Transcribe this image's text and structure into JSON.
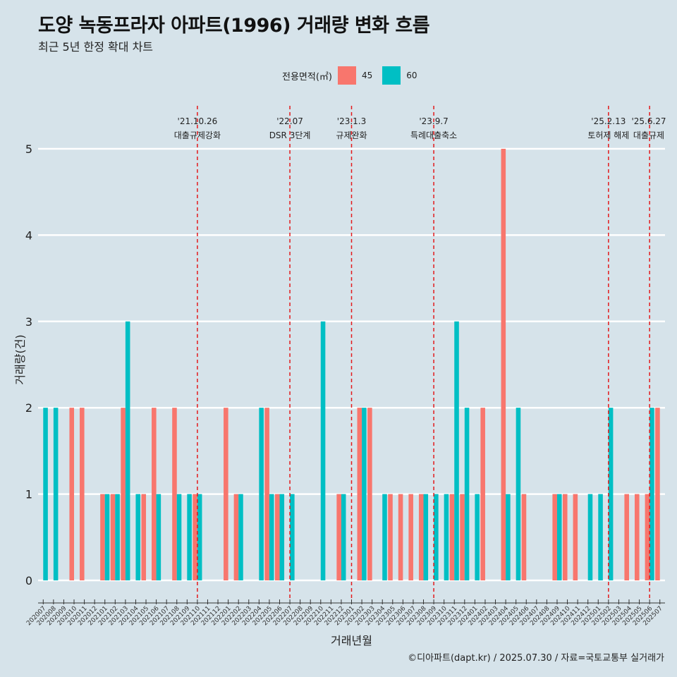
{
  "title": "도양 녹동프라자 아파트(1996) 거래량 변화 흐름",
  "subtitle": "최근 5년 한정 확대 차트",
  "legend": {
    "title": "전용면적(㎡)",
    "items": [
      {
        "label": "45",
        "color": "#F8766D"
      },
      {
        "label": "60",
        "color": "#00BFC4"
      }
    ]
  },
  "caption": "©디아파트(dapt.kr) / 2025.07.30 / 자료=국토교통부 실거래가",
  "chart_data": {
    "type": "bar",
    "xlabel": "거래년월",
    "ylabel": "거래량(건)",
    "ylim": [
      0,
      5
    ],
    "yticks": [
      0,
      1,
      2,
      3,
      4,
      5
    ],
    "categories": [
      "202007",
      "202008",
      "202009",
      "202010",
      "202011",
      "202012",
      "202101",
      "202102",
      "202103",
      "202104",
      "202105",
      "202106",
      "202107",
      "202108",
      "202109",
      "202110",
      "202111",
      "202112",
      "202201",
      "202202",
      "202203",
      "202204",
      "202205",
      "202206",
      "202207",
      "202208",
      "202209",
      "202210",
      "202211",
      "202212",
      "202301",
      "202302",
      "202303",
      "202304",
      "202305",
      "202306",
      "202307",
      "202308",
      "202309",
      "202310",
      "202311",
      "202312",
      "202401",
      "202402",
      "202403",
      "202404",
      "202405",
      "202406",
      "202407",
      "202408",
      "202409",
      "202410",
      "202411",
      "202412",
      "202501",
      "202502",
      "202503",
      "202504",
      "202505",
      "202506",
      "202507"
    ],
    "series": [
      {
        "name": "45",
        "color": "#F8766D",
        "values": [
          0,
          0,
          0,
          2,
          2,
          0,
          1,
          1,
          2,
          0,
          1,
          2,
          0,
          2,
          0,
          1,
          0,
          0,
          2,
          1,
          0,
          0,
          2,
          1,
          0,
          0,
          0,
          0,
          0,
          1,
          0,
          2,
          2,
          0,
          1,
          1,
          1,
          1,
          0,
          0,
          1,
          1,
          0,
          2,
          0,
          5,
          0,
          1,
          0,
          0,
          1,
          1,
          1,
          0,
          0,
          0,
          0,
          1,
          1,
          1,
          2
        ]
      },
      {
        "name": "60",
        "color": "#00BFC4",
        "values": [
          2,
          2,
          0,
          0,
          0,
          0,
          1,
          1,
          3,
          1,
          0,
          1,
          0,
          1,
          1,
          1,
          0,
          0,
          0,
          1,
          0,
          2,
          1,
          1,
          1,
          0,
          0,
          3,
          0,
          1,
          0,
          2,
          0,
          1,
          0,
          0,
          0,
          1,
          1,
          1,
          3,
          2,
          1,
          0,
          0,
          1,
          2,
          0,
          0,
          0,
          1,
          0,
          0,
          1,
          1,
          2,
          0,
          0,
          0,
          2,
          0
        ]
      }
    ],
    "events": [
      {
        "date": "'21.10.26",
        "label": "대출규제강화",
        "at": "202110"
      },
      {
        "date": "'22.07",
        "label": "DSR 3단계",
        "at": "202207"
      },
      {
        "date": "'23.1.3",
        "label": "규제완화",
        "at": "202301"
      },
      {
        "date": "'23.9.7",
        "label": "특례대출축소",
        "at": "202309"
      },
      {
        "date": "'25.2.13",
        "label": "토허제 해제",
        "at": "202502"
      },
      {
        "date": "'25.6.27",
        "label": "대출규제",
        "at": "202506"
      }
    ]
  }
}
